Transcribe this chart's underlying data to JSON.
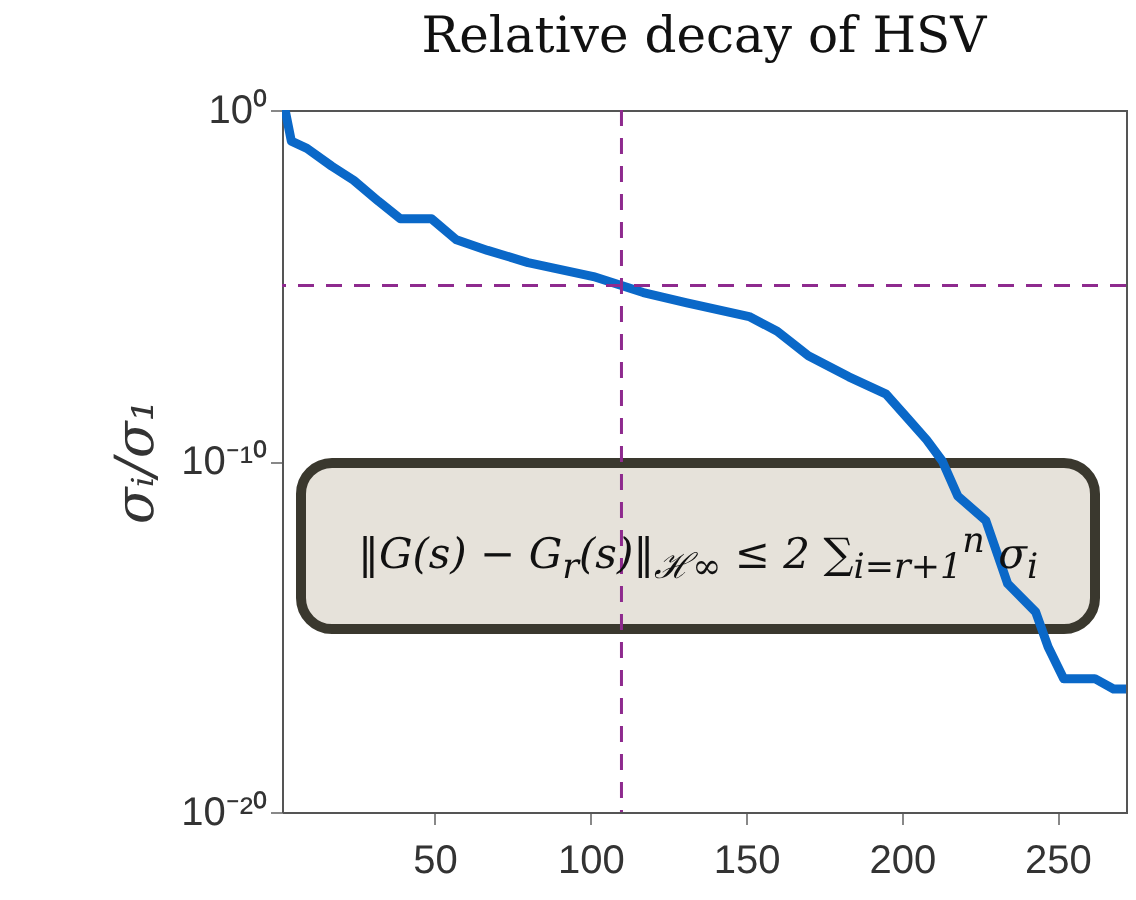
{
  "chart_data": {
    "type": "line",
    "title": "Relative decay of HSV",
    "ylabel": "σᵢ/σ₁",
    "x": [
      1,
      2,
      4,
      9,
      17,
      24,
      32,
      39,
      49,
      57,
      67,
      80,
      101,
      110,
      117,
      131,
      151,
      160,
      170,
      183,
      195,
      202,
      208,
      213,
      218,
      227,
      234,
      243,
      247,
      252,
      262,
      268,
      272
    ],
    "series": [
      {
        "color": "#0a68c8",
        "values": [
          1,
          1,
          0.13,
          0.081,
          0.025,
          0.01,
          0.0025,
          0.0008,
          0.0008,
          0.0002,
          0.0001,
          4.5e-05,
          1.8e-05,
          1e-05,
          6.3e-06,
          3.2e-06,
          1.3e-06,
          5e-07,
          1e-07,
          2.5e-08,
          8e-09,
          1.6e-09,
          4e-10,
          1e-10,
          1e-11,
          2e-12,
          3.2e-14,
          5e-15,
          5e-16,
          6.3e-17,
          6.3e-17,
          3.2e-17,
          3.2e-17
        ]
      }
    ],
    "xlim": [
      1,
      272
    ],
    "xticks": [
      50,
      100,
      150,
      200,
      250
    ],
    "ylim": [
      1e-20,
      1
    ],
    "yticks": [
      {
        "value": 1e-20,
        "label": "10⁻²⁰"
      },
      {
        "value": 1e-10,
        "label": "10⁻¹⁰"
      },
      {
        "value": 1,
        "label": "10⁰"
      }
    ],
    "log": "y",
    "grid": false,
    "ref_lines": [
      {
        "axis": "x",
        "value": 110,
        "color": "#8e2a8e",
        "line_style": "dashed"
      },
      {
        "axis": "y",
        "value": 1e-05,
        "color": "#8e2a8e",
        "line_style": "dashed"
      }
    ],
    "annotations": [
      "‖G(s) − G$_{r}$(s)‖$_{ℋ∞}$ ≤ 2 ∑$_{i=r+1}$$^{n}$ σ$_{i}$"
    ]
  }
}
